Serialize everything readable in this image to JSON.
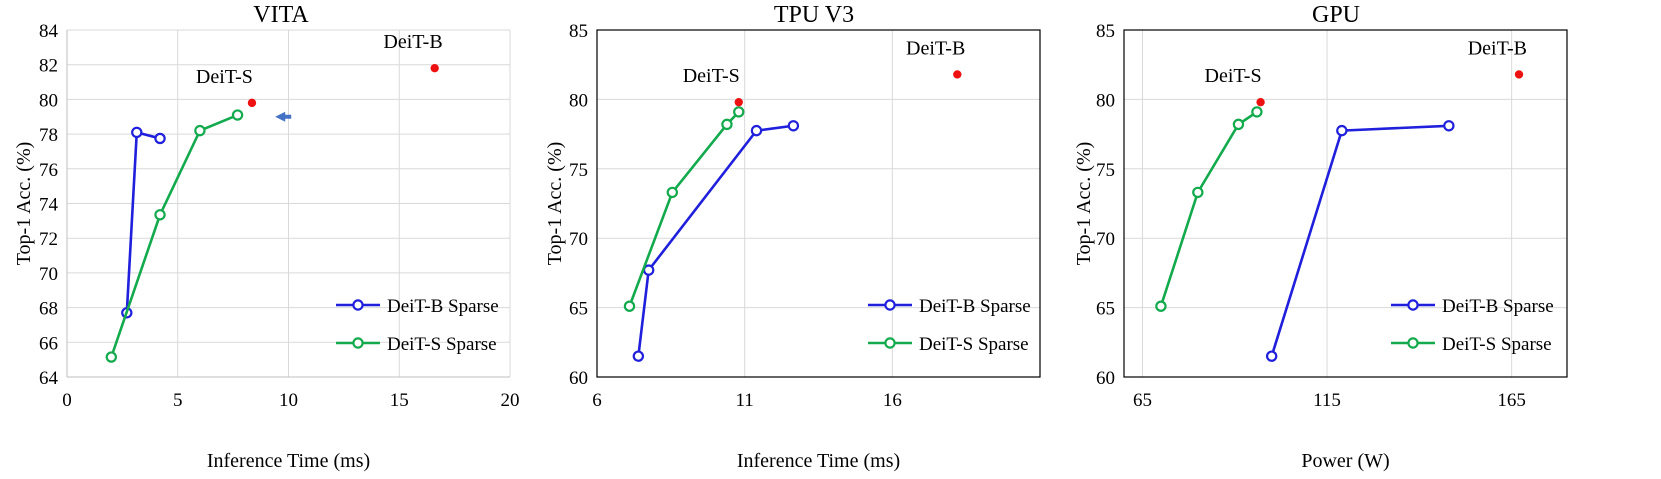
{
  "chart_data": [
    {
      "type": "line",
      "title": "VITA",
      "xlabel": "Inference Time (ms)",
      "ylabel": "Top-1 Acc. (%)",
      "xlim": [
        0,
        20
      ],
      "ylim": [
        64,
        84
      ],
      "xticks": [
        0,
        5,
        10,
        15,
        20
      ],
      "yticks": [
        64,
        66,
        68,
        70,
        72,
        74,
        76,
        78,
        80,
        82,
        84
      ],
      "grid": true,
      "frame": false,
      "legend_position": "bottom-right",
      "series": [
        {
          "name": "DeiT-B Sparse",
          "color": "#1f1fdc",
          "x": [
            2.7,
            3.15,
            4.2
          ],
          "y": [
            67.7,
            78.1,
            77.75
          ]
        },
        {
          "name": "DeiT-S Sparse",
          "color": "#12aa4c",
          "x": [
            2.0,
            4.2,
            6.0,
            7.7
          ],
          "y": [
            65.15,
            73.35,
            78.2,
            79.1
          ]
        }
      ],
      "points": [
        {
          "label": "DeiT-S",
          "x": 8.35,
          "y": 79.8,
          "color": "#ee1111"
        },
        {
          "label": "DeiT-B",
          "x": 16.6,
          "y": 81.8,
          "color": "#ee1111"
        }
      ],
      "arrow": {
        "x": 9.4,
        "y": 79.0,
        "color": "#4472c4"
      }
    },
    {
      "type": "line",
      "title": "TPU V3",
      "xlabel": "Inference Time (ms)",
      "ylabel": "Top-1 Acc. (%)",
      "xlim": [
        6,
        21
      ],
      "ylim": [
        60,
        85
      ],
      "xticks": [
        6,
        11,
        16
      ],
      "yticks": [
        60,
        65,
        70,
        75,
        80,
        85
      ],
      "grid": true,
      "frame": true,
      "legend_position": "bottom-right",
      "series": [
        {
          "name": "DeiT-B Sparse",
          "color": "#1f1fdc",
          "x": [
            7.4,
            7.75,
            11.4,
            12.65
          ],
          "y": [
            61.5,
            67.7,
            77.75,
            78.1
          ]
        },
        {
          "name": "DeiT-S Sparse",
          "color": "#12aa4c",
          "x": [
            7.1,
            8.55,
            10.4,
            10.8
          ],
          "y": [
            65.1,
            73.3,
            78.2,
            79.1
          ]
        }
      ],
      "points": [
        {
          "label": "DeiT-S",
          "x": 10.8,
          "y": 79.8,
          "color": "#ee1111"
        },
        {
          "label": "DeiT-B",
          "x": 18.2,
          "y": 81.8,
          "color": "#ee1111"
        }
      ]
    },
    {
      "type": "line",
      "title": "GPU",
      "xlabel": "Power (W)",
      "ylabel": "Top-1 Acc. (%)",
      "xlim": [
        60,
        180
      ],
      "ylim": [
        60,
        85
      ],
      "xticks": [
        65,
        115,
        165
      ],
      "yticks": [
        60,
        65,
        70,
        75,
        80,
        85
      ],
      "grid": true,
      "frame": true,
      "legend_position": "bottom-right",
      "series": [
        {
          "name": "DeiT-B Sparse",
          "color": "#1f1fdc",
          "x": [
            100,
            119,
            148
          ],
          "y": [
            61.5,
            77.75,
            78.1
          ]
        },
        {
          "name": "DeiT-S Sparse",
          "color": "#12aa4c",
          "x": [
            70,
            80,
            91,
            96
          ],
          "y": [
            65.1,
            73.3,
            78.2,
            79.1
          ]
        }
      ],
      "points": [
        {
          "label": "DeiT-S",
          "x": 97,
          "y": 79.8,
          "color": "#ee1111"
        },
        {
          "label": "DeiT-B",
          "x": 167,
          "y": 81.8,
          "color": "#ee1111"
        }
      ]
    }
  ]
}
